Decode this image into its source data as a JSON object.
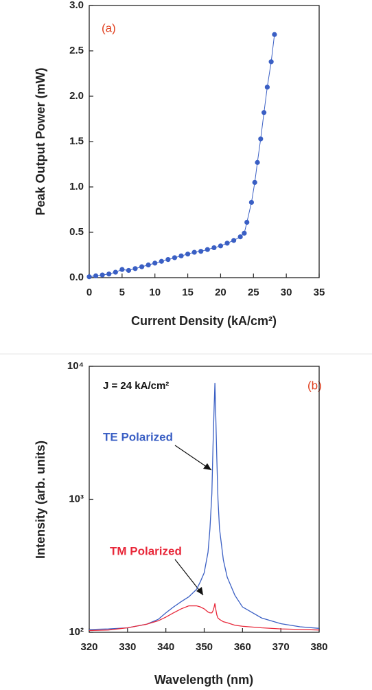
{
  "chart_data": [
    {
      "type": "line",
      "markers": true,
      "annotations": [
        "(a)"
      ],
      "x_label": "Current Density (kA/cm²)",
      "y_label": "Peak Output Power (mW)",
      "x": [
        0,
        1,
        2,
        3,
        4,
        5,
        6,
        7,
        8,
        9,
        10,
        11,
        12,
        13,
        14,
        15,
        16,
        17,
        18,
        19,
        20,
        21,
        22,
        23,
        23.6,
        24.0,
        24.7,
        25.2,
        25.6,
        26.1,
        26.6,
        27.1,
        27.7,
        28.2
      ],
      "values": [
        0.01,
        0.02,
        0.03,
        0.04,
        0.06,
        0.09,
        0.08,
        0.1,
        0.12,
        0.14,
        0.16,
        0.18,
        0.2,
        0.22,
        0.24,
        0.26,
        0.28,
        0.29,
        0.31,
        0.33,
        0.35,
        0.38,
        0.41,
        0.45,
        0.49,
        0.61,
        0.83,
        1.05,
        1.27,
        1.53,
        1.82,
        2.1,
        2.38,
        2.68
      ],
      "color": "#3a5fc4",
      "xlim": [
        0,
        35
      ],
      "xticks": [
        0,
        5,
        10,
        15,
        20,
        25,
        30,
        35
      ],
      "ylim": [
        0,
        3
      ],
      "yticks": [
        {
          "value": 0,
          "label": "0.0"
        },
        0.5,
        {
          "value": 1,
          "label": "1.0"
        },
        1.5,
        {
          "value": 2,
          "label": "2.0"
        },
        2.5,
        {
          "value": 3,
          "label": "3.0"
        }
      ]
    },
    {
      "type": "line",
      "log_y": true,
      "annotations": [
        "J = 24 kA/cm²",
        "(b)"
      ],
      "x_label": "Wavelength (nm)",
      "y_label": "Intensity (arb. units)",
      "x": [
        320,
        325,
        330,
        335,
        338,
        340,
        342,
        344,
        346,
        348,
        349,
        350,
        351,
        351.5,
        352,
        352.3,
        352.6,
        352.8,
        353,
        353.3,
        353.6,
        354,
        355,
        356,
        358,
        360,
        365,
        370,
        375,
        380
      ],
      "series": [
        {
          "name": "TE Polarized",
          "color": "#3a5fc4",
          "values": [
            105,
            106,
            108,
            115,
            125,
            140,
            155,
            170,
            185,
            210,
            240,
            280,
            400,
            600,
            1100,
            2500,
            5000,
            7500,
            4500,
            2000,
            1000,
            600,
            350,
            260,
            190,
            155,
            128,
            116,
            110,
            107
          ]
        },
        {
          "name": "TM Polarized",
          "color": "#e8283a",
          "values": [
            103,
            104,
            108,
            115,
            122,
            130,
            140,
            150,
            158,
            158,
            155,
            150,
            142,
            140,
            140,
            145,
            155,
            165,
            150,
            135,
            128,
            125,
            120,
            118,
            113,
            111,
            108,
            106,
            105,
            104
          ]
        }
      ],
      "xlim": [
        320,
        380
      ],
      "xticks": [
        320,
        330,
        340,
        350,
        360,
        370,
        380
      ],
      "ylim": [
        100,
        10000
      ],
      "yticks": [
        {
          "value": 100,
          "label": "10²"
        },
        {
          "value": 1000,
          "label": "10³"
        },
        {
          "value": 10000,
          "label": "10⁴"
        }
      ]
    }
  ]
}
